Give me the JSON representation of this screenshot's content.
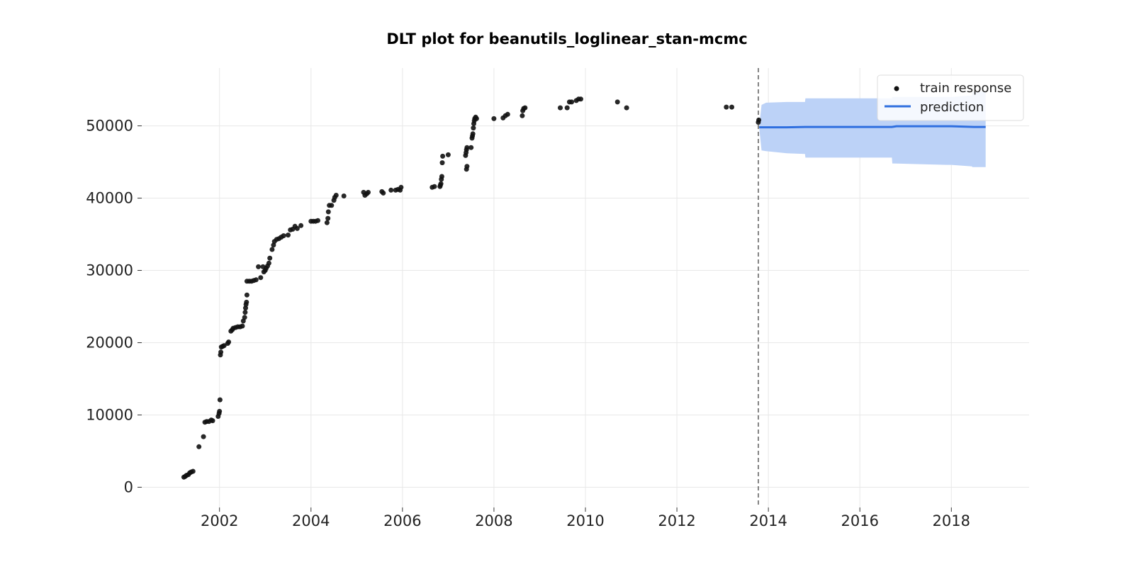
{
  "chart_data": {
    "type": "scatter",
    "title": "DLT plot for beanutils_loglinear_stan-mcmc",
    "xlabel": "",
    "ylabel": "",
    "xlim": [
      2000.3,
      2019.7
    ],
    "ylim": [
      -2800,
      58000
    ],
    "x_ticks": [
      "2002",
      "2004",
      "2006",
      "2008",
      "2010",
      "2012",
      "2014",
      "2016",
      "2018"
    ],
    "y_ticks": [
      "0",
      "10000",
      "20000",
      "30000",
      "40000",
      "50000"
    ],
    "grid": true,
    "legend": {
      "position": "top-right",
      "entries": [
        {
          "label": "train response",
          "marker": "dot"
        },
        {
          "label": "prediction",
          "marker": "line"
        }
      ]
    },
    "split_date": 2013.78,
    "colors": {
      "train": "#111111",
      "prediction": "#2f6fdf",
      "band": "#bcd2f7",
      "split_line": "#666666",
      "grid": "#e8e8e8"
    },
    "series": [
      {
        "name": "train response",
        "type": "scatter",
        "points": [
          [
            2001.22,
            1400
          ],
          [
            2001.25,
            1500
          ],
          [
            2001.28,
            1650
          ],
          [
            2001.32,
            1750
          ],
          [
            2001.35,
            2000
          ],
          [
            2001.38,
            2100
          ],
          [
            2001.42,
            2200
          ],
          [
            2001.55,
            5600
          ],
          [
            2001.65,
            7000
          ],
          [
            2001.68,
            9000
          ],
          [
            2001.72,
            9100
          ],
          [
            2001.77,
            9100
          ],
          [
            2001.82,
            9300
          ],
          [
            2001.85,
            9200
          ],
          [
            2001.97,
            9800
          ],
          [
            2001.99,
            10200
          ],
          [
            2002.0,
            10500
          ],
          [
            2002.01,
            12100
          ],
          [
            2002.02,
            18300
          ],
          [
            2002.03,
            18700
          ],
          [
            2002.04,
            19400
          ],
          [
            2002.07,
            19500
          ],
          [
            2002.1,
            19600
          ],
          [
            2002.18,
            19900
          ],
          [
            2002.2,
            20100
          ],
          [
            2002.25,
            21600
          ],
          [
            2002.28,
            21800
          ],
          [
            2002.3,
            22000
          ],
          [
            2002.35,
            22100
          ],
          [
            2002.4,
            22200
          ],
          [
            2002.45,
            22200
          ],
          [
            2002.5,
            22300
          ],
          [
            2002.52,
            23000
          ],
          [
            2002.55,
            23500
          ],
          [
            2002.56,
            24200
          ],
          [
            2002.57,
            24800
          ],
          [
            2002.58,
            25300
          ],
          [
            2002.59,
            25600
          ],
          [
            2002.6,
            26600
          ],
          [
            2002.6,
            28500
          ],
          [
            2002.65,
            28500
          ],
          [
            2002.7,
            28500
          ],
          [
            2002.75,
            28600
          ],
          [
            2002.8,
            28700
          ],
          [
            2002.85,
            30500
          ],
          [
            2002.9,
            29000
          ],
          [
            2002.95,
            30500
          ],
          [
            2002.97,
            29800
          ],
          [
            2003.0,
            30000
          ],
          [
            2003.02,
            30300
          ],
          [
            2003.05,
            30600
          ],
          [
            2003.08,
            31000
          ],
          [
            2003.1,
            31700
          ],
          [
            2003.15,
            32900
          ],
          [
            2003.18,
            33500
          ],
          [
            2003.2,
            34000
          ],
          [
            2003.25,
            34300
          ],
          [
            2003.3,
            34400
          ],
          [
            2003.35,
            34600
          ],
          [
            2003.4,
            34800
          ],
          [
            2003.5,
            34900
          ],
          [
            2003.55,
            35600
          ],
          [
            2003.6,
            35700
          ],
          [
            2003.65,
            36100
          ],
          [
            2003.7,
            35800
          ],
          [
            2003.78,
            36200
          ],
          [
            2004.0,
            36800
          ],
          [
            2004.05,
            36800
          ],
          [
            2004.1,
            36800
          ],
          [
            2004.15,
            36900
          ],
          [
            2004.35,
            36600
          ],
          [
            2004.37,
            37200
          ],
          [
            2004.38,
            38100
          ],
          [
            2004.4,
            39000
          ],
          [
            2004.45,
            39000
          ],
          [
            2004.5,
            39700
          ],
          [
            2004.52,
            40100
          ],
          [
            2004.55,
            40400
          ],
          [
            2004.72,
            40300
          ],
          [
            2005.15,
            40800
          ],
          [
            2005.18,
            40400
          ],
          [
            2005.22,
            40600
          ],
          [
            2005.25,
            40800
          ],
          [
            2005.55,
            40900
          ],
          [
            2005.58,
            40700
          ],
          [
            2005.75,
            41100
          ],
          [
            2005.85,
            41100
          ],
          [
            2005.9,
            41200
          ],
          [
            2005.95,
            41100
          ],
          [
            2005.97,
            41500
          ],
          [
            2006.65,
            41500
          ],
          [
            2006.7,
            41600
          ],
          [
            2006.82,
            41600
          ],
          [
            2006.83,
            41800
          ],
          [
            2006.84,
            42000
          ],
          [
            2006.85,
            42600
          ],
          [
            2006.86,
            43000
          ],
          [
            2006.87,
            44900
          ],
          [
            2006.88,
            45800
          ],
          [
            2007.0,
            46000
          ],
          [
            2007.38,
            45900
          ],
          [
            2007.39,
            46300
          ],
          [
            2007.4,
            46700
          ],
          [
            2007.41,
            47000
          ],
          [
            2007.4,
            44000
          ],
          [
            2007.41,
            44400
          ],
          [
            2007.5,
            47000
          ],
          [
            2007.52,
            48300
          ],
          [
            2007.53,
            48600
          ],
          [
            2007.54,
            48900
          ],
          [
            2007.55,
            49700
          ],
          [
            2007.56,
            50300
          ],
          [
            2007.57,
            50700
          ],
          [
            2007.58,
            51000
          ],
          [
            2007.6,
            51200
          ],
          [
            2007.62,
            51000
          ],
          [
            2008.0,
            51000
          ],
          [
            2008.2,
            51100
          ],
          [
            2008.25,
            51400
          ],
          [
            2008.3,
            51600
          ],
          [
            2008.62,
            51400
          ],
          [
            2008.63,
            52100
          ],
          [
            2008.65,
            52400
          ],
          [
            2008.68,
            52500
          ],
          [
            2009.45,
            52500
          ],
          [
            2009.6,
            52500
          ],
          [
            2009.65,
            53300
          ],
          [
            2009.7,
            53300
          ],
          [
            2009.8,
            53500
          ],
          [
            2009.85,
            53700
          ],
          [
            2009.9,
            53700
          ],
          [
            2010.7,
            53300
          ],
          [
            2010.9,
            52500
          ],
          [
            2013.08,
            52600
          ],
          [
            2013.2,
            52600
          ],
          [
            2013.78,
            50500
          ],
          [
            2013.79,
            50800
          ]
        ]
      },
      {
        "name": "prediction",
        "type": "line",
        "x": [
          2013.8,
          2014.0,
          2014.4,
          2014.8,
          2015.3,
          2015.8,
          2016.3,
          2016.7,
          2016.8,
          2017.3,
          2017.9,
          2018.0,
          2018.5,
          2018.75
        ],
        "y": [
          49800,
          49800,
          49800,
          49850,
          49850,
          49850,
          49850,
          49850,
          49950,
          49950,
          49950,
          49950,
          49850,
          49850
        ]
      },
      {
        "name": "prediction interval",
        "type": "band",
        "x": [
          2013.8,
          2013.85,
          2013.95,
          2014.4,
          2014.8,
          2014.81,
          2016.4,
          2016.7,
          2016.71,
          2017.3,
          2017.9,
          2018.0,
          2018.45,
          2018.46,
          2018.75
        ],
        "upper": [
          49900,
          52900,
          53200,
          53300,
          53300,
          53800,
          53800,
          53800,
          54000,
          54000,
          54000,
          54000,
          54200,
          54700,
          54800
        ],
        "lower": [
          49700,
          46600,
          46500,
          46200,
          46100,
          45600,
          45600,
          45600,
          44800,
          44700,
          44600,
          44600,
          44400,
          44300,
          44300
        ]
      }
    ]
  }
}
